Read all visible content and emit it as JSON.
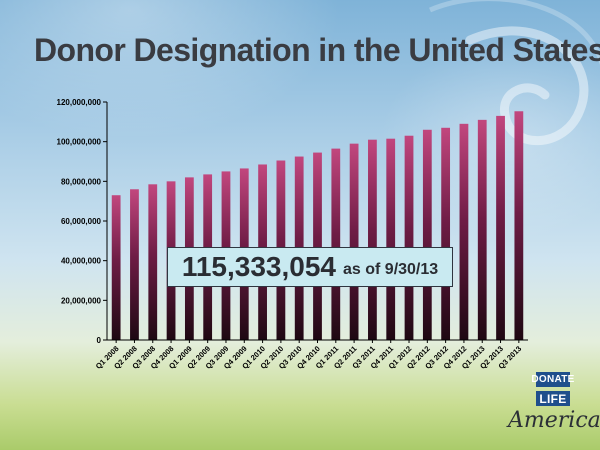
{
  "slide": {
    "title": "Donor Designation in the United States",
    "callout_value": "115,333,054",
    "callout_suffix": "as of 9/30/13",
    "logo": {
      "line1": "DONATE",
      "line2": "LIFE",
      "line3": "America"
    }
  },
  "colors": {
    "bar_top": "#c2477e",
    "bar_mid": "#6e1c45",
    "bar_bottom": "#1e0812",
    "axis": "#000000",
    "text": "#000000"
  },
  "chart_data": {
    "type": "bar",
    "title": "",
    "xlabel": "",
    "ylabel": "",
    "categories": [
      "Q1 2008",
      "Q2 2008",
      "Q3 2008",
      "Q4 2008",
      "Q1 2009",
      "Q2 2009",
      "Q3 2009",
      "Q4 2009",
      "Q1 2010",
      "Q2 2010",
      "Q3 2010",
      "Q4 2010",
      "Q1 2011",
      "Q2 2011",
      "Q3 2011",
      "Q4 2011",
      "Q1 2012",
      "Q2 2012",
      "Q3 2012",
      "Q4 2012",
      "Q1 2013",
      "Q2 2013",
      "Q3 2013"
    ],
    "values": [
      73000000,
      76000000,
      78500000,
      80000000,
      82000000,
      83500000,
      85000000,
      86500000,
      88500000,
      90500000,
      92500000,
      94500000,
      96500000,
      99000000,
      101000000,
      101500000,
      103000000,
      106000000,
      107000000,
      109000000,
      111000000,
      113000000,
      115333054
    ],
    "ylim": [
      0,
      120000000
    ],
    "yticks": [
      0,
      20000000,
      40000000,
      60000000,
      80000000,
      100000000,
      120000000
    ],
    "ytick_labels": [
      "0",
      "20,000,000",
      "40,000,000",
      "60,000,000",
      "80,000,000",
      "100,000,000",
      "120,000,000"
    ],
    "grid": false,
    "legend": "none"
  }
}
